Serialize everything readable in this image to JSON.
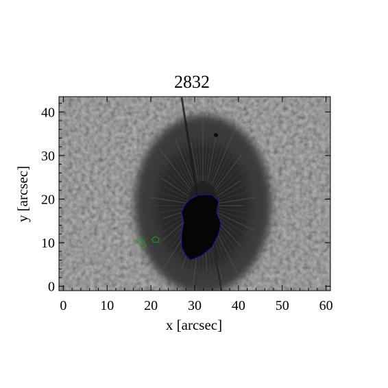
{
  "title": "2832",
  "x_axis": {
    "label": "x [arcsec]",
    "range": [
      -1,
      61
    ],
    "ticks": [
      0,
      10,
      20,
      30,
      40,
      50,
      60
    ]
  },
  "y_axis": {
    "label": "y [arcsec]",
    "range": [
      -1,
      43.5
    ],
    "ticks": [
      0,
      10,
      20,
      30,
      40
    ]
  },
  "image": {
    "subject": "sunspot intensity map",
    "colors": {
      "background_gray": "#6a6a6a",
      "penumbra": "#2e2e2e",
      "umbra": "#050505"
    },
    "features": {
      "penumbra_center": [
        35,
        18
      ],
      "umbra_center": [
        32.5,
        14.5
      ]
    }
  },
  "contours": [
    {
      "name": "umbra-contour",
      "color": "#1a1ab8",
      "points": [
        [
          29,
          20
        ],
        [
          31,
          21
        ],
        [
          34,
          21
        ],
        [
          35.5,
          19.5
        ],
        [
          35,
          17
        ],
        [
          36,
          14.5
        ],
        [
          35.5,
          12
        ],
        [
          34,
          9
        ],
        [
          31.5,
          7
        ],
        [
          29,
          6
        ],
        [
          28,
          7
        ],
        [
          27,
          9
        ],
        [
          27,
          12
        ],
        [
          27.5,
          14.5
        ],
        [
          27,
          17
        ],
        [
          28,
          19
        ]
      ]
    },
    {
      "name": "green-contour-left",
      "color": "#1fa51f",
      "points": [
        [
          16.8,
          10.5
        ],
        [
          17.6,
          11.0
        ],
        [
          18.5,
          10.2
        ],
        [
          18.9,
          9.2
        ],
        [
          18.2,
          8.8
        ],
        [
          17.4,
          9.6
        ]
      ]
    },
    {
      "name": "green-contour-right",
      "color": "#1fa51f",
      "points": [
        [
          20.2,
          10.8
        ],
        [
          21.0,
          11.4
        ],
        [
          21.9,
          10.9
        ],
        [
          21.6,
          10.1
        ],
        [
          20.6,
          10.1
        ]
      ]
    }
  ]
}
